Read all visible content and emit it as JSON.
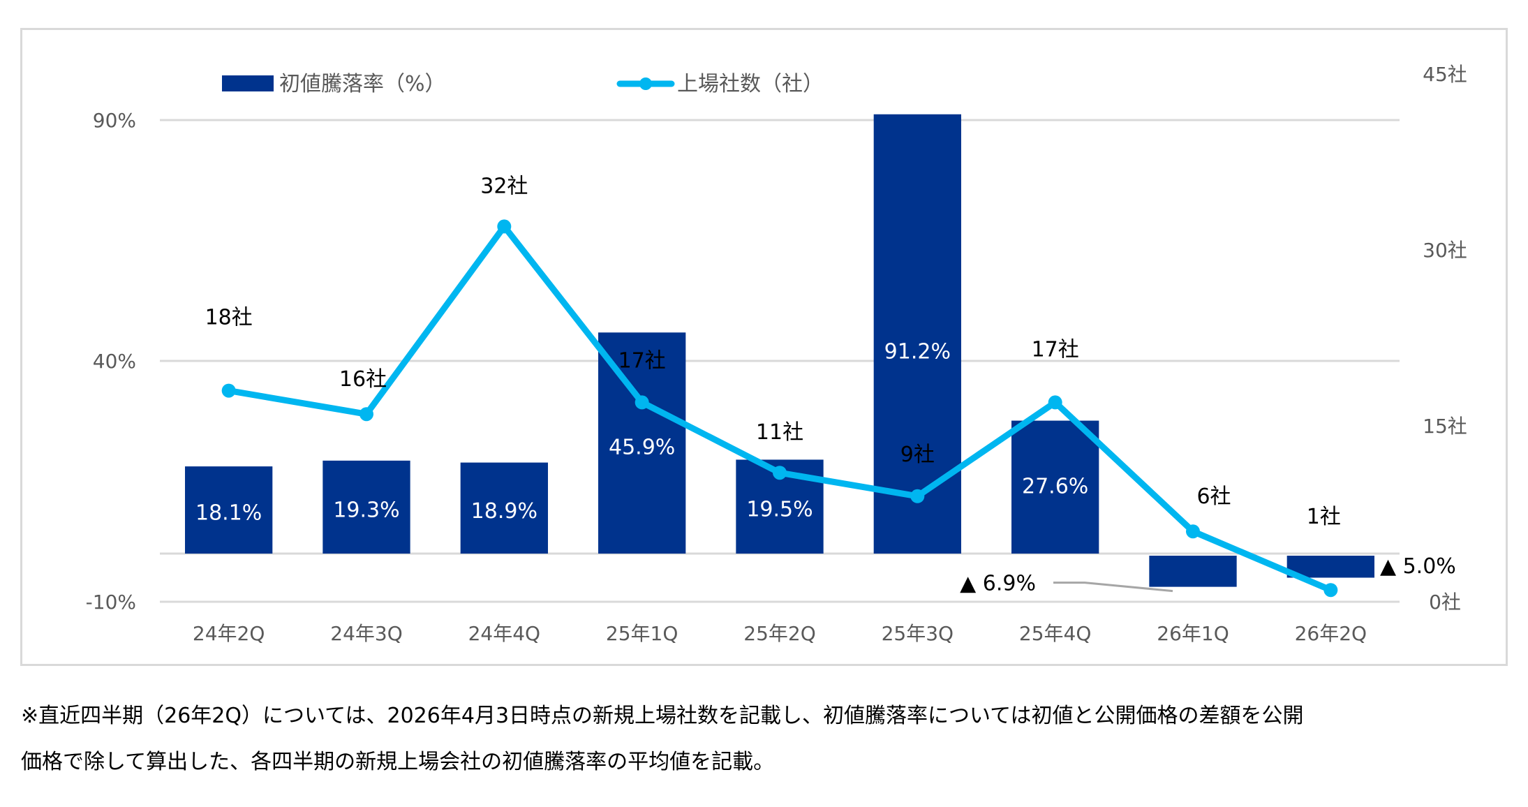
{
  "chart_data": {
    "type": "bar+line",
    "title": "",
    "categories": [
      "24年2Q",
      "24年3Q",
      "24年4Q",
      "25年1Q",
      "25年2Q",
      "25年3Q",
      "25年4Q",
      "26年1Q",
      "26年2Q"
    ],
    "series": [
      {
        "name": "初値騰落率（%）",
        "type": "bar",
        "axis": "left",
        "color": "#00338D",
        "values": [
          18.1,
          19.3,
          18.9,
          45.9,
          19.5,
          91.2,
          27.6,
          -6.9,
          -5.0
        ],
        "labels": [
          "18.1%",
          "19.3%",
          "18.9%",
          "45.9%",
          "19.5%",
          "91.2%",
          "27.6%",
          "▲ 6.9%",
          "▲ 5.0%"
        ]
      },
      {
        "name": "上場社数（社）",
        "type": "line",
        "axis": "right",
        "color": "#00B6F0",
        "values": [
          18,
          16,
          32,
          17,
          11,
          9,
          17,
          6,
          1
        ],
        "labels": [
          "18社",
          "16社",
          "32社",
          "17社",
          "11社",
          "9社",
          "17社",
          "6社",
          "1社"
        ]
      }
    ],
    "left_axis": {
      "ylim": [
        -10,
        90
      ],
      "ticks": [
        90,
        40,
        -10
      ],
      "tick_labels": [
        "90%",
        "40%",
        "-10%"
      ]
    },
    "right_axis": {
      "ylim": [
        0,
        45
      ],
      "ticks": [
        45,
        30,
        15,
        0
      ],
      "tick_labels": [
        "45社",
        "30社",
        "15社",
        "0社"
      ]
    },
    "xlabel": "",
    "ylabel": "",
    "grid": true,
    "legend": {
      "placement": "top",
      "entries": [
        "初値騰落率（%）",
        "上場社数（社）"
      ]
    }
  },
  "footnote": {
    "line1": "※直近四半期（26年2Q）については、2026年4月3日時点の新規上場社数を記載し、初値騰落率については初値と公開価格の差額を公開",
    "line2": "価格で除して算出した、各四半期の新規上場会社の初値騰落率の平均値を記載。"
  }
}
